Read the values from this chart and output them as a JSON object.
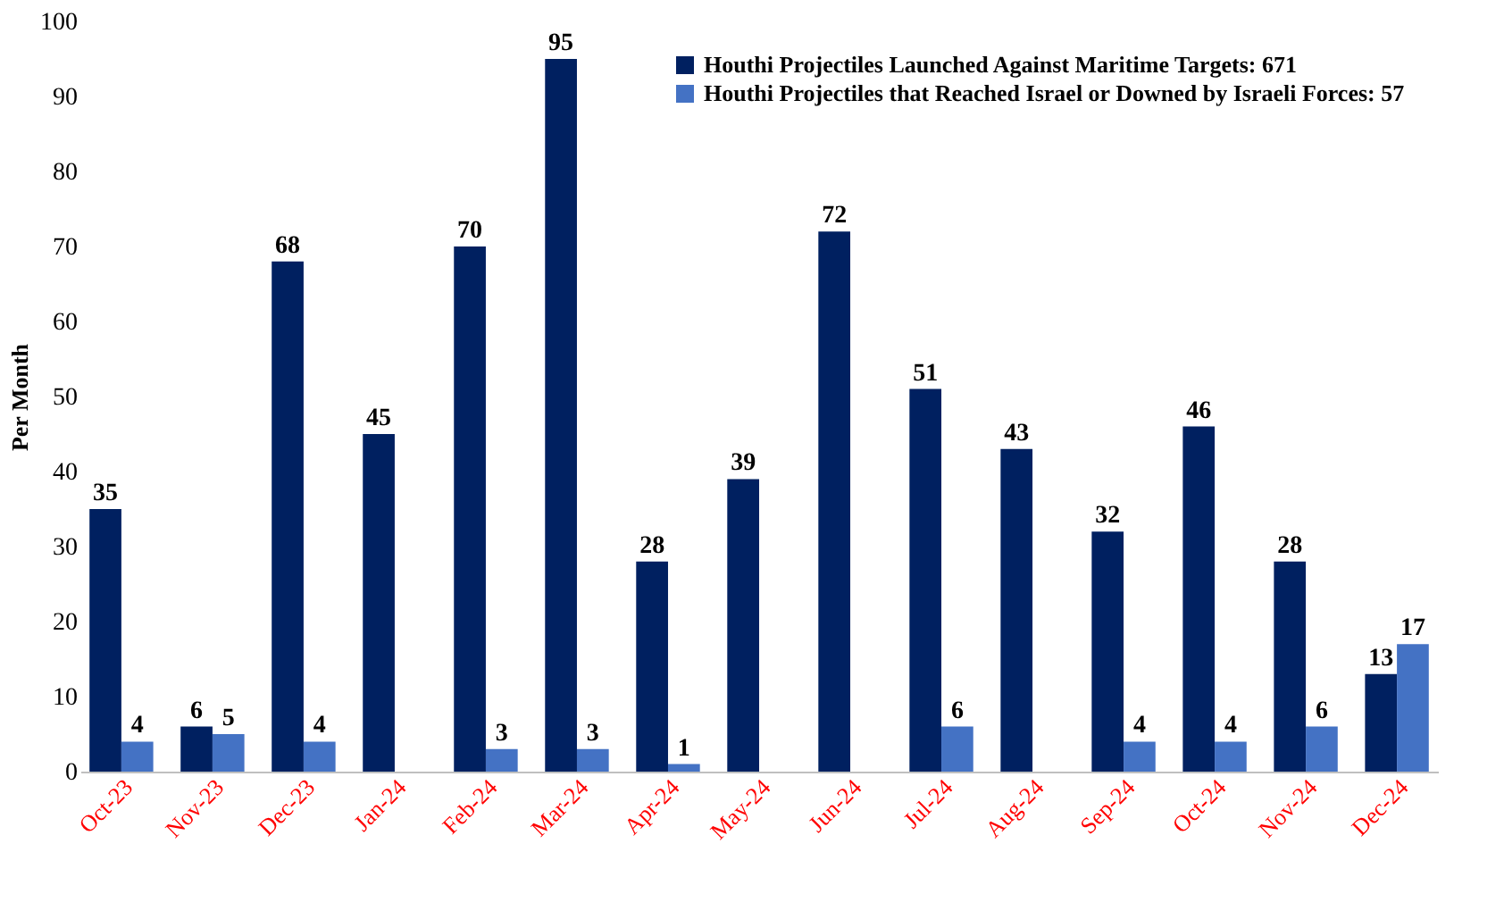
{
  "chart_data": {
    "type": "bar",
    "ylabel": "Per Month",
    "categories": [
      "Oct-23",
      "Nov-23",
      "Dec-23",
      "Jan-24",
      "Feb-24",
      "Mar-24",
      "Apr-24",
      "May-24",
      "Jun-24",
      "Jul-24",
      "Aug-24",
      "Sep-24",
      "Oct-24",
      "Nov-24",
      "Dec-24"
    ],
    "series": [
      {
        "name": "Houthi Projectiles Launched Against Maritime Targets: 671",
        "color": "#002060",
        "values": [
          35,
          6,
          68,
          45,
          70,
          95,
          28,
          39,
          72,
          51,
          43,
          32,
          46,
          28,
          13
        ]
      },
      {
        "name": "Houthi Projectiles that Reached Israel or Downed by Israeli Forces: 57",
        "color": "#4472c4",
        "values": [
          4,
          5,
          4,
          null,
          3,
          3,
          1,
          null,
          null,
          6,
          null,
          4,
          4,
          6,
          17
        ]
      }
    ],
    "ylim": [
      0,
      100
    ],
    "yticks": [
      0,
      10,
      20,
      30,
      40,
      50,
      60,
      70,
      80,
      90,
      100
    ],
    "data_labels": true,
    "legend": "top right",
    "grid": false
  }
}
